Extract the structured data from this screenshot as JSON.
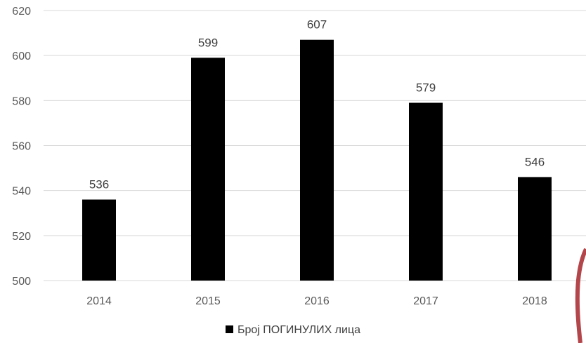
{
  "chart_data": {
    "type": "bar",
    "categories": [
      "2014",
      "2015",
      "2016",
      "2017",
      "2018"
    ],
    "series": [
      {
        "name": "Број ПОГИНУЛИХ лица",
        "values": [
          536,
          599,
          607,
          579,
          546
        ],
        "color": "#000000"
      }
    ],
    "y_ticks": [
      "500",
      "520",
      "540",
      "560",
      "580",
      "600",
      "620"
    ],
    "ylim": [
      500,
      620
    ],
    "grid": true,
    "legend_position": "bottom",
    "show_data_labels": true
  },
  "legend": {
    "label": "Број ПОГИНУЛИХ лица"
  }
}
